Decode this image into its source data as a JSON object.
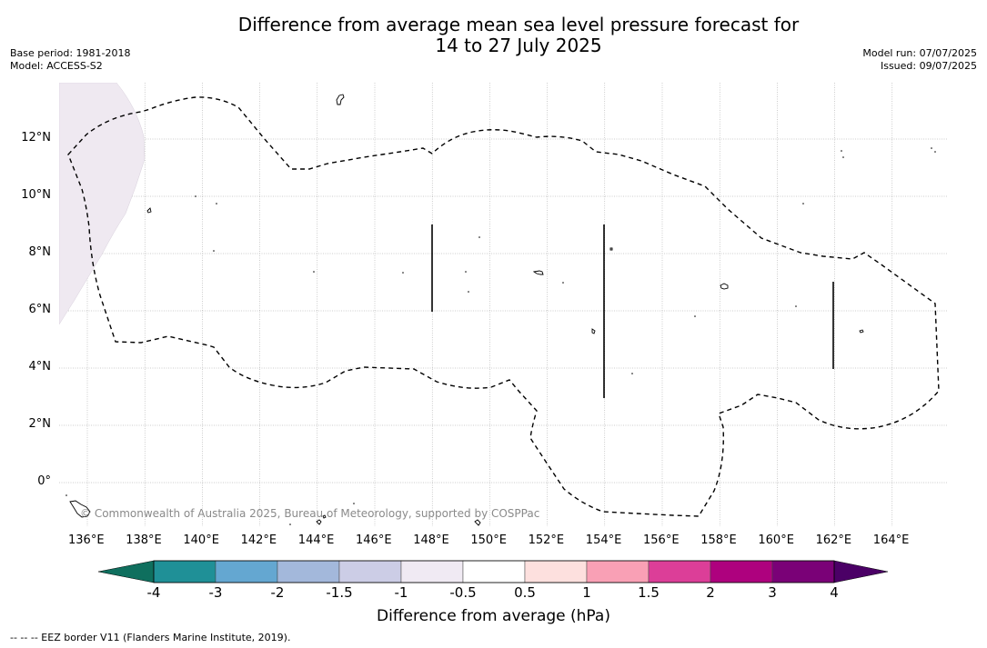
{
  "title": {
    "line1": "Difference from average mean sea level pressure forecast for",
    "line2": "14 to 27 July 2025"
  },
  "meta_left": {
    "base_period": "Base period: 1981-2018",
    "model": "Model: ACCESS-S2"
  },
  "meta_right": {
    "model_run": "Model run: 07/07/2025",
    "issued": "Issued: 09/07/2025"
  },
  "map": {
    "lon_ticks": [
      "136°E",
      "138°E",
      "140°E",
      "142°E",
      "144°E",
      "146°E",
      "148°E",
      "150°E",
      "152°E",
      "154°E",
      "156°E",
      "158°E",
      "160°E",
      "162°E",
      "164°E"
    ],
    "lat_ticks": [
      "12°N",
      "10°N",
      "8°N",
      "6°N",
      "4°N",
      "2°N",
      "0°"
    ],
    "copyright": "© Commonwealth of Australia 2025, Bureau of Meteorology, supported by COSPPac",
    "anomaly_region_category": "-1 to -0.5",
    "colors": {
      "gridline": "#9a9a9a",
      "eez_line": "#000000",
      "anomaly_shading": "#efe9f1"
    }
  },
  "colorbar": {
    "title": "Difference from average (hPa)",
    "labels": [
      "-4",
      "-3",
      "-2",
      "-1.5",
      "-1",
      "-0.5",
      "0.5",
      "1",
      "1.5",
      "2",
      "3",
      "4"
    ],
    "colors": {
      "below_min": "#0f6f5e",
      "bins": [
        "#1f9097",
        "#64a7d1",
        "#a3b8db",
        "#cccde6",
        "#f0eaf3",
        "#ffffff",
        "#fde0de",
        "#f9a0b5",
        "#dc3e98",
        "#ae017e",
        "#7a0177"
      ],
      "above_max": "#4b0066"
    }
  },
  "footnote": "--  --  -- EEZ border V11 (Flanders Marine Institute, 2019)."
}
